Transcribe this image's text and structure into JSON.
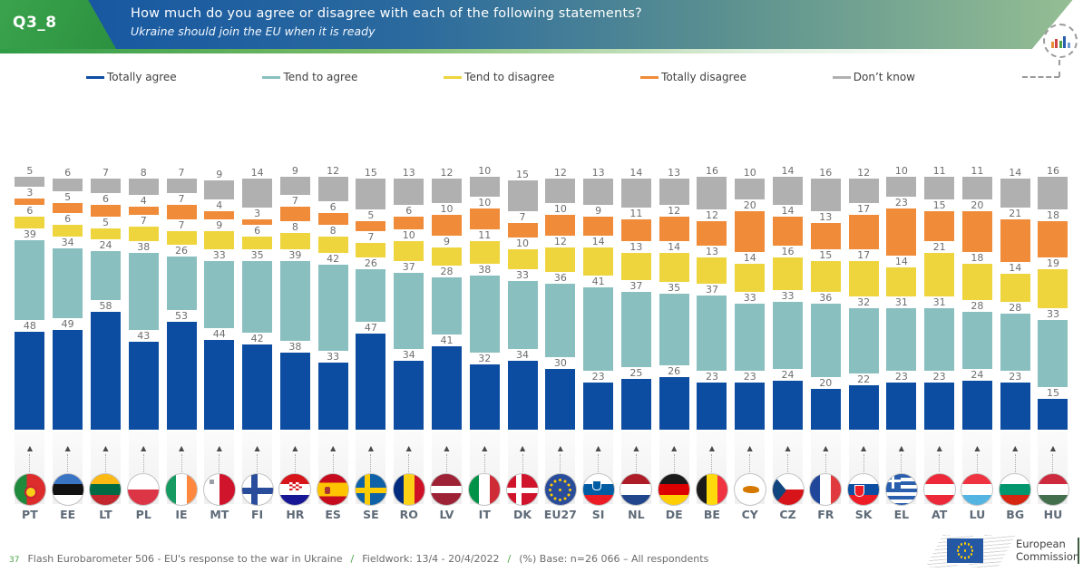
{
  "header": {
    "question_id": "Q3_8",
    "title": "How much do you agree or disagree with each of the following statements?",
    "subtitle": "Ukraine should join the EU when it is ready"
  },
  "legend": [
    {
      "label": "Totally agree",
      "color": "#0d4da1"
    },
    {
      "label": "Tend to agree",
      "color": "#8abfbf"
    },
    {
      "label": "Tend to disagree",
      "color": "#eed53d"
    },
    {
      "label": "Totally disagree",
      "color": "#ef8b39"
    },
    {
      "label": "Don’t know",
      "color": "#b0b0b0"
    }
  ],
  "chart_data": {
    "type": "bar",
    "stacked": true,
    "unit": "%",
    "ylim": [
      0,
      100
    ],
    "grid": false,
    "legend_position": "top",
    "title": "How much do you agree or disagree with each of the following statements?",
    "subtitle": "Ukraine should join the EU when it is ready",
    "trend_arrow_glyph": "▲",
    "categories": [
      "PT",
      "EE",
      "LT",
      "PL",
      "IE",
      "MT",
      "FI",
      "HR",
      "ES",
      "SE",
      "RO",
      "LV",
      "IT",
      "DK",
      "EU27",
      "SI",
      "NL",
      "DE",
      "BE",
      "CY",
      "CZ",
      "FR",
      "SK",
      "EL",
      "AT",
      "LU",
      "BG",
      "HU"
    ],
    "series": [
      {
        "name": "Totally agree",
        "color": "#0d4da1",
        "values": [
          48,
          49,
          58,
          43,
          53,
          44,
          42,
          38,
          33,
          47,
          34,
          41,
          32,
          34,
          30,
          23,
          25,
          26,
          23,
          23,
          24,
          20,
          22,
          23,
          23,
          24,
          23,
          15
        ]
      },
      {
        "name": "Tend to agree",
        "color": "#8abfbf",
        "values": [
          39,
          34,
          24,
          38,
          26,
          33,
          35,
          39,
          42,
          26,
          37,
          28,
          38,
          33,
          36,
          41,
          37,
          35,
          37,
          33,
          33,
          36,
          32,
          31,
          31,
          28,
          28,
          33
        ]
      },
      {
        "name": "Tend to disagree",
        "color": "#eed53d",
        "values": [
          6,
          6,
          5,
          7,
          7,
          9,
          6,
          8,
          8,
          7,
          10,
          9,
          11,
          10,
          12,
          14,
          13,
          14,
          13,
          14,
          16,
          15,
          17,
          14,
          21,
          18,
          14,
          19
        ]
      },
      {
        "name": "Totally disagree",
        "color": "#ef8b39",
        "values": [
          3,
          5,
          6,
          4,
          7,
          4,
          3,
          7,
          6,
          5,
          6,
          10,
          10,
          7,
          10,
          9,
          11,
          12,
          12,
          20,
          14,
          13,
          17,
          23,
          15,
          20,
          21,
          18
        ]
      },
      {
        "name": "Don’t know",
        "color": "#b0b0b0",
        "values": [
          5,
          6,
          7,
          8,
          7,
          9,
          14,
          9,
          12,
          15,
          13,
          12,
          10,
          15,
          12,
          13,
          14,
          13,
          16,
          10,
          14,
          16,
          12,
          10,
          11,
          11,
          14,
          16
        ]
      }
    ]
  },
  "footer": {
    "page_number": "37",
    "survey": "Flash Eurobarometer 506 - EU's response to the war in Ukraine",
    "fieldwork": "Fieldwork: 13/4 - 20/4/2022",
    "base": "(%) Base: n=26 066 – All respondents",
    "separator": "/"
  },
  "logo": {
    "line1": "European",
    "line2": "Commission"
  }
}
